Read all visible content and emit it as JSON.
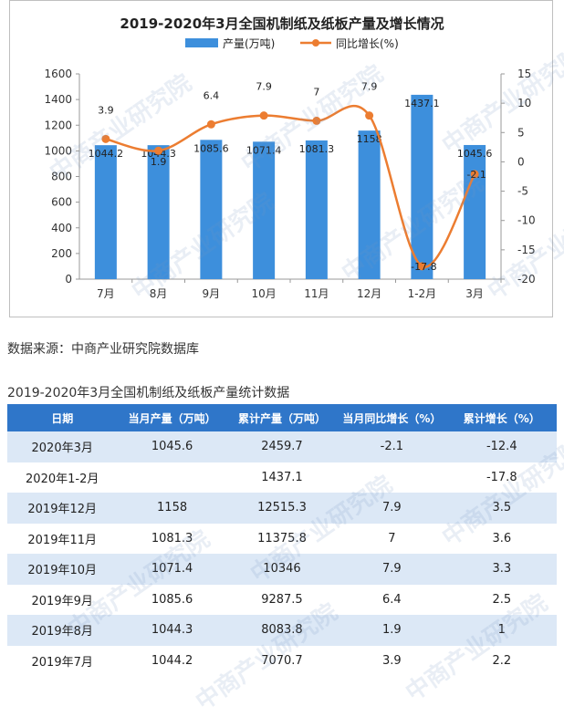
{
  "chart_data": {
    "type": "bar+line",
    "title": "2019-2020年3月全国机制纸及纸板产量及增长情况",
    "categories": [
      "7月",
      "8月",
      "9月",
      "10月",
      "11月",
      "12月",
      "1-2月",
      "3月"
    ],
    "series": [
      {
        "name": "产量(万吨)",
        "type": "bar",
        "axis": "left",
        "values": [
          1044.2,
          1044.3,
          1085.6,
          1071.4,
          1081.3,
          1158,
          1437.1,
          1045.6
        ],
        "labels": [
          "1044.2",
          "1044.3",
          "1085.6",
          "1071.4",
          "1081.3",
          "1158",
          "1437.1",
          "1045.6"
        ],
        "color": "#3d8fdc"
      },
      {
        "name": "同比增长(%)",
        "type": "line",
        "axis": "right",
        "values": [
          3.9,
          1.9,
          6.4,
          7.9,
          7,
          7.9,
          -17.8,
          -2.1
        ],
        "labels": [
          "3.9",
          "1.9",
          "6.4",
          "7.9",
          "7",
          "7.9",
          "-17.8",
          "-2.1"
        ],
        "color": "#ec7d31"
      }
    ],
    "y_left": {
      "min": 0,
      "max": 1600,
      "ticks": [
        "0",
        "200",
        "400",
        "600",
        "800",
        "1000",
        "1200",
        "1400",
        "1600"
      ]
    },
    "y_right": {
      "min": -20,
      "max": 15,
      "ticks": [
        "-20",
        "-15",
        "-10",
        "-5",
        "0",
        "5",
        "10",
        "15"
      ]
    },
    "legend_position": "top-center",
    "grid": false
  },
  "source": "数据来源：中商产业研究院数据库",
  "table": {
    "title": "2019-2020年3月全国机制纸及纸板产量统计数据",
    "headers": [
      "日期",
      "当月产量（万吨）",
      "累计产量（万吨）",
      "当月同比增长（%）",
      "累计增长（%）"
    ],
    "rows": [
      [
        "2020年3月",
        "1045.6",
        "2459.7",
        "-2.1",
        "-12.4"
      ],
      [
        "2020年1-2月",
        "",
        "1437.1",
        "",
        "-17.8"
      ],
      [
        "2019年12月",
        "1158",
        "12515.3",
        "7.9",
        "3.5"
      ],
      [
        "2019年11月",
        "1081.3",
        "11375.8",
        "7",
        "3.6"
      ],
      [
        "2019年10月",
        "1071.4",
        "10346",
        "7.9",
        "3.3"
      ],
      [
        "2019年9月",
        "1085.6",
        "9287.5",
        "6.4",
        "2.5"
      ],
      [
        "2019年8月",
        "1044.3",
        "8083.8",
        "1.9",
        "1"
      ],
      [
        "2019年7月",
        "1044.2",
        "7070.7",
        "3.9",
        "2.2"
      ]
    ]
  },
  "watermark": "中商产业研究院"
}
